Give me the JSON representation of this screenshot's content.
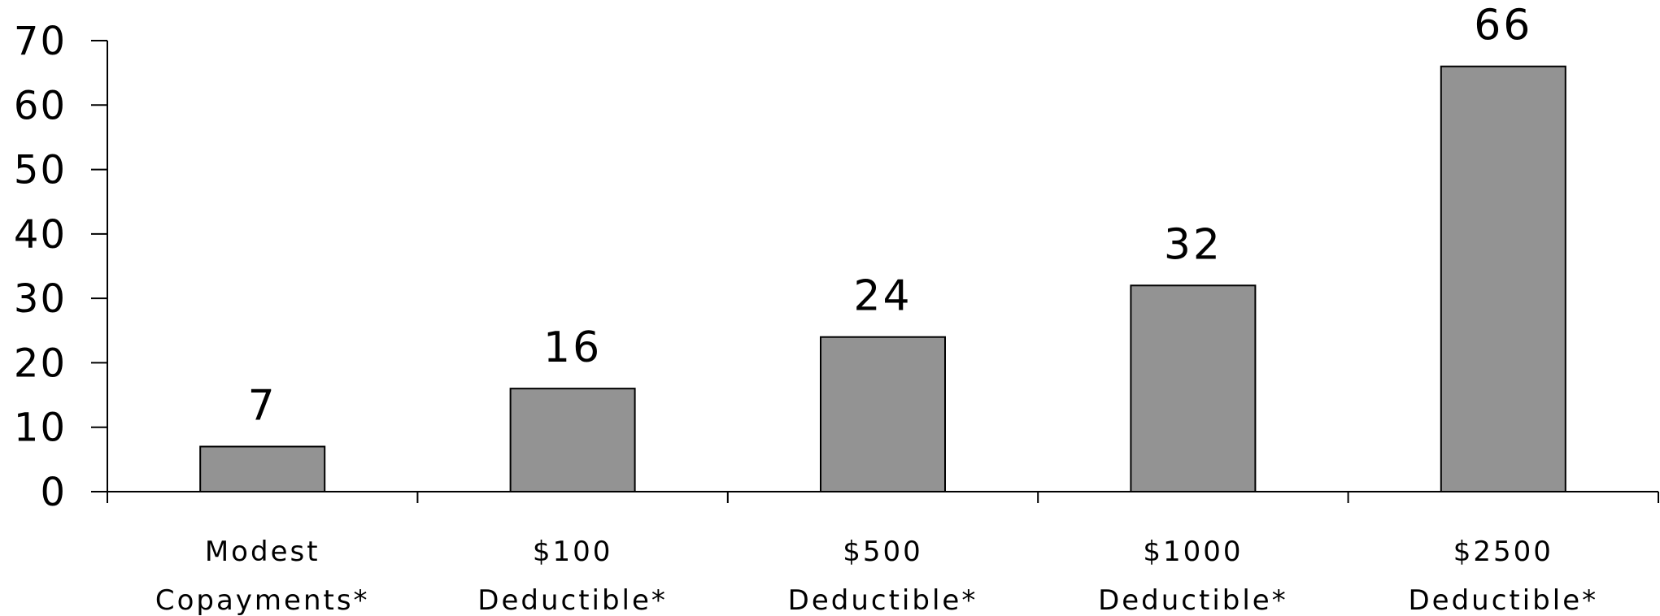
{
  "chart_data": {
    "type": "bar",
    "categories": [
      [
        "Modest",
        "Copayments*"
      ],
      [
        "$100",
        "Deductible*"
      ],
      [
        "$500",
        "Deductible*"
      ],
      [
        "$1000",
        "Deductible*"
      ],
      [
        "$2500",
        "Deductible*"
      ]
    ],
    "values": [
      7,
      16,
      24,
      32,
      66
    ],
    "data_labels": [
      "7",
      "16",
      "24",
      "32",
      "66"
    ],
    "yticks": [
      "0",
      "10",
      "20",
      "30",
      "40",
      "50",
      "60",
      "70"
    ],
    "title": "",
    "xlabel": "",
    "ylabel": "",
    "ylim": [
      0,
      70
    ],
    "grid": false,
    "legend": "none",
    "colors": {
      "bar_fill": "#939393",
      "bar_stroke": "#000000",
      "axis": "#000000"
    }
  }
}
